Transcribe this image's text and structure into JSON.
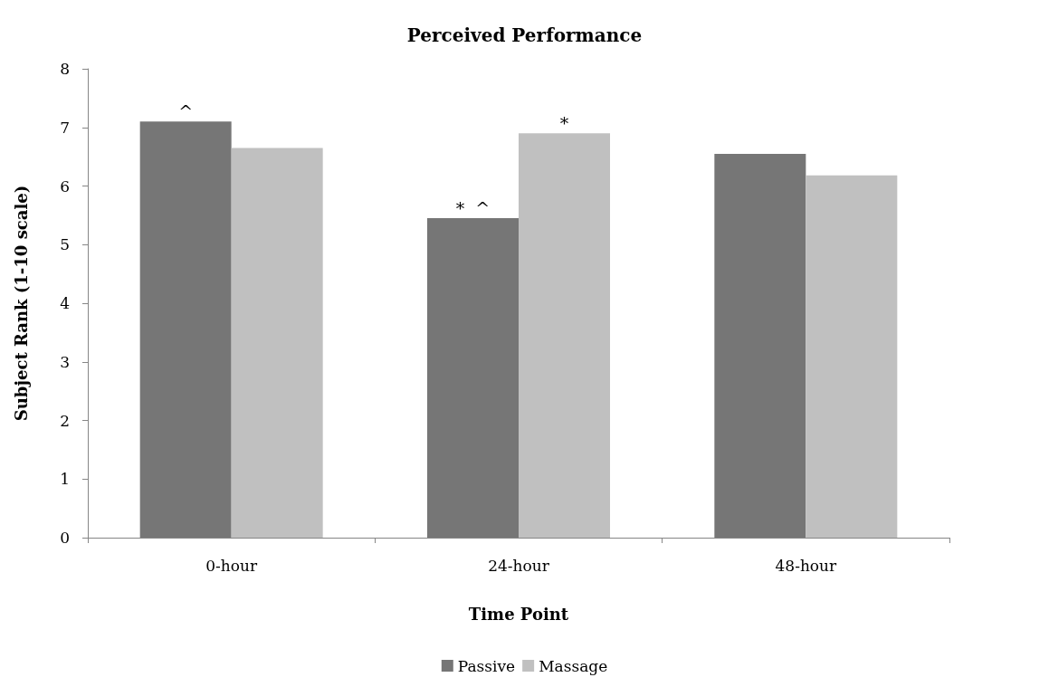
{
  "chart_data": {
    "type": "bar",
    "title": "Perceived Performance",
    "xlabel": "Time Point",
    "ylabel": "Subject Rank (1-10 scale)",
    "categories": [
      "0-hour",
      "24-hour",
      "48-hour"
    ],
    "series": [
      {
        "name": "Passive",
        "color": "#767676",
        "values": [
          7.1,
          5.45,
          6.55
        ]
      },
      {
        "name": "Massage",
        "color": "#c0c0c0",
        "values": [
          6.65,
          6.9,
          6.18
        ]
      }
    ],
    "ylim": [
      0,
      8
    ],
    "yticks": [
      0,
      1,
      2,
      3,
      4,
      5,
      6,
      7,
      8
    ],
    "grid": false,
    "legend": "bottom",
    "annotations": [
      {
        "text": "^",
        "x": "0-hour",
        "y": 7.1
      },
      {
        "text": "*  ^",
        "x": "24-hour",
        "y": 5.45
      },
      {
        "text": "*",
        "x": "24-hour",
        "y": 6.9
      }
    ]
  }
}
